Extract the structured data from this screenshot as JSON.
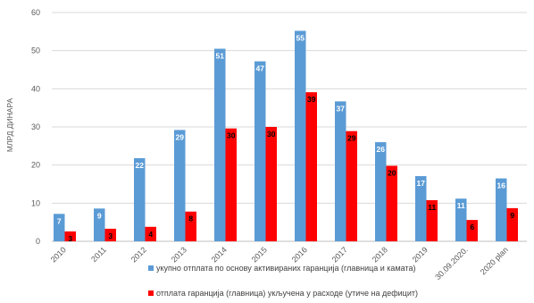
{
  "chart_data": {
    "type": "bar",
    "categories": [
      "2010",
      "2011",
      "2012",
      "2013",
      "2014",
      "2015",
      "2016",
      "2017",
      "2018",
      "2019",
      "30.09.2020.",
      "2020 plan"
    ],
    "series": [
      {
        "name": "укупно отплата по основу активираних гаранција (главница и камата)",
        "values": [
          7.2,
          8.6,
          21.8,
          29.2,
          50.5,
          47.2,
          55.2,
          36.7,
          26.0,
          17.1,
          11.2,
          16.5
        ],
        "labels": [
          "7",
          "9",
          "22",
          "29",
          "51",
          "47",
          "55",
          "37",
          "26",
          "17",
          "11",
          "16"
        ],
        "color": "#5b9bd5"
      },
      {
        "name": "отплата гаранција (главница) укључена у расходе (утиче на дефицит)",
        "values": [
          2.6,
          3.3,
          3.8,
          7.8,
          29.6,
          30.0,
          39.1,
          28.9,
          19.8,
          10.8,
          5.6,
          8.7
        ],
        "labels": [
          "3",
          "3",
          "4",
          "8",
          "30",
          "30",
          "39",
          "29",
          "20",
          "11",
          "6",
          "9"
        ],
        "color": "#ff0000"
      }
    ],
    "ylabel": "МЛРД ДИНАРА",
    "xlabel": "",
    "ylim": [
      0,
      60
    ],
    "yticks": [
      0,
      10,
      20,
      30,
      40,
      50,
      60
    ],
    "grid": true,
    "legend": "bottom"
  }
}
